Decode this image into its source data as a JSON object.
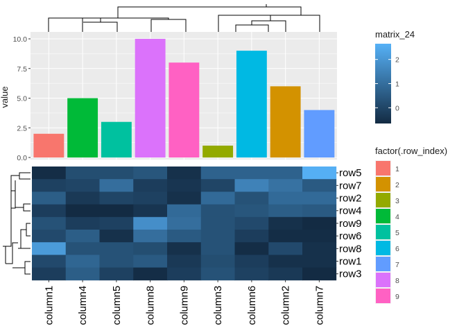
{
  "chart_data": [
    {
      "type": "bar",
      "ylabel": "value",
      "ylim": [
        0,
        10.5
      ],
      "yticks": [
        "0.0",
        "2.5",
        "5.0",
        "7.5",
        "10.0"
      ],
      "ytick_values": [
        0,
        2.5,
        5,
        7.5,
        10
      ],
      "categories": [
        "column1",
        "column4",
        "column5",
        "column8",
        "column9",
        "column3",
        "column6",
        "column2",
        "column7"
      ],
      "values": [
        2,
        5,
        3,
        10,
        8,
        1,
        9,
        6,
        4
      ],
      "fill_row_index": [
        1,
        4,
        5,
        8,
        9,
        3,
        6,
        2,
        7
      ],
      "grid": true
    },
    {
      "type": "heatmap",
      "name": "matrix_24",
      "columns": [
        "column1",
        "column4",
        "column5",
        "column8",
        "column9",
        "column3",
        "column6",
        "column2",
        "column7"
      ],
      "rows": [
        "row5",
        "row7",
        "row2",
        "row4",
        "row9",
        "row6",
        "row8",
        "row1",
        "row3"
      ],
      "values": [
        [
          -0.6,
          0.2,
          0.2,
          0.4,
          -0.5,
          0.7,
          0.7,
          0.7,
          2.6
        ],
        [
          -0.1,
          0.0,
          1.0,
          -0.2,
          -0.4,
          0.0,
          1.5,
          1.1,
          0.5
        ],
        [
          0.6,
          -0.3,
          0.0,
          -0.1,
          -0.5,
          0.9,
          0.3,
          0.9,
          0.9
        ],
        [
          -0.2,
          -0.8,
          -0.9,
          -0.4,
          0.9,
          0.3,
          0.4,
          0.6,
          0.5
        ],
        [
          0.3,
          -0.2,
          -0.1,
          1.8,
          1.0,
          0.3,
          0.1,
          -0.5,
          -0.7
        ],
        [
          0.1,
          0.6,
          -0.5,
          1.0,
          0.5,
          0.3,
          -0.2,
          -0.6,
          -0.6
        ],
        [
          2.1,
          0.3,
          0.3,
          0.2,
          -0.5,
          0.3,
          -0.6,
          0.1,
          -0.5
        ],
        [
          0.1,
          0.8,
          0.3,
          0.5,
          -0.3,
          0.2,
          -0.2,
          -0.5,
          -0.5
        ],
        [
          -0.2,
          0.6,
          -0.1,
          -0.6,
          -0.2,
          0.3,
          -0.1,
          -0.3,
          -0.9
        ]
      ],
      "value_range": [
        -0.9,
        2.7
      ]
    }
  ],
  "legends": {
    "matrix": {
      "title": "matrix_24",
      "ticks": [
        "0",
        "1",
        "2"
      ],
      "tick_values": [
        0,
        1,
        2
      ],
      "range": [
        -0.65,
        2.65
      ],
      "low_color": "#132B43",
      "high_color": "#56B1F7"
    },
    "factor": {
      "title": "factor(.row_index)",
      "levels": [
        "1",
        "2",
        "3",
        "4",
        "5",
        "6",
        "7",
        "8",
        "9"
      ],
      "colors": [
        "#F8766D",
        "#D39200",
        "#93AA00",
        "#00BA38",
        "#00C19F",
        "#00B9E3",
        "#619CFF",
        "#DB72FB",
        "#FF61C3"
      ]
    }
  },
  "colors": {
    "panel_bg": "#EBEBEB",
    "grid": "#FFFFFF",
    "text": "#4D4D4D",
    "dendrogram": "#000000"
  }
}
